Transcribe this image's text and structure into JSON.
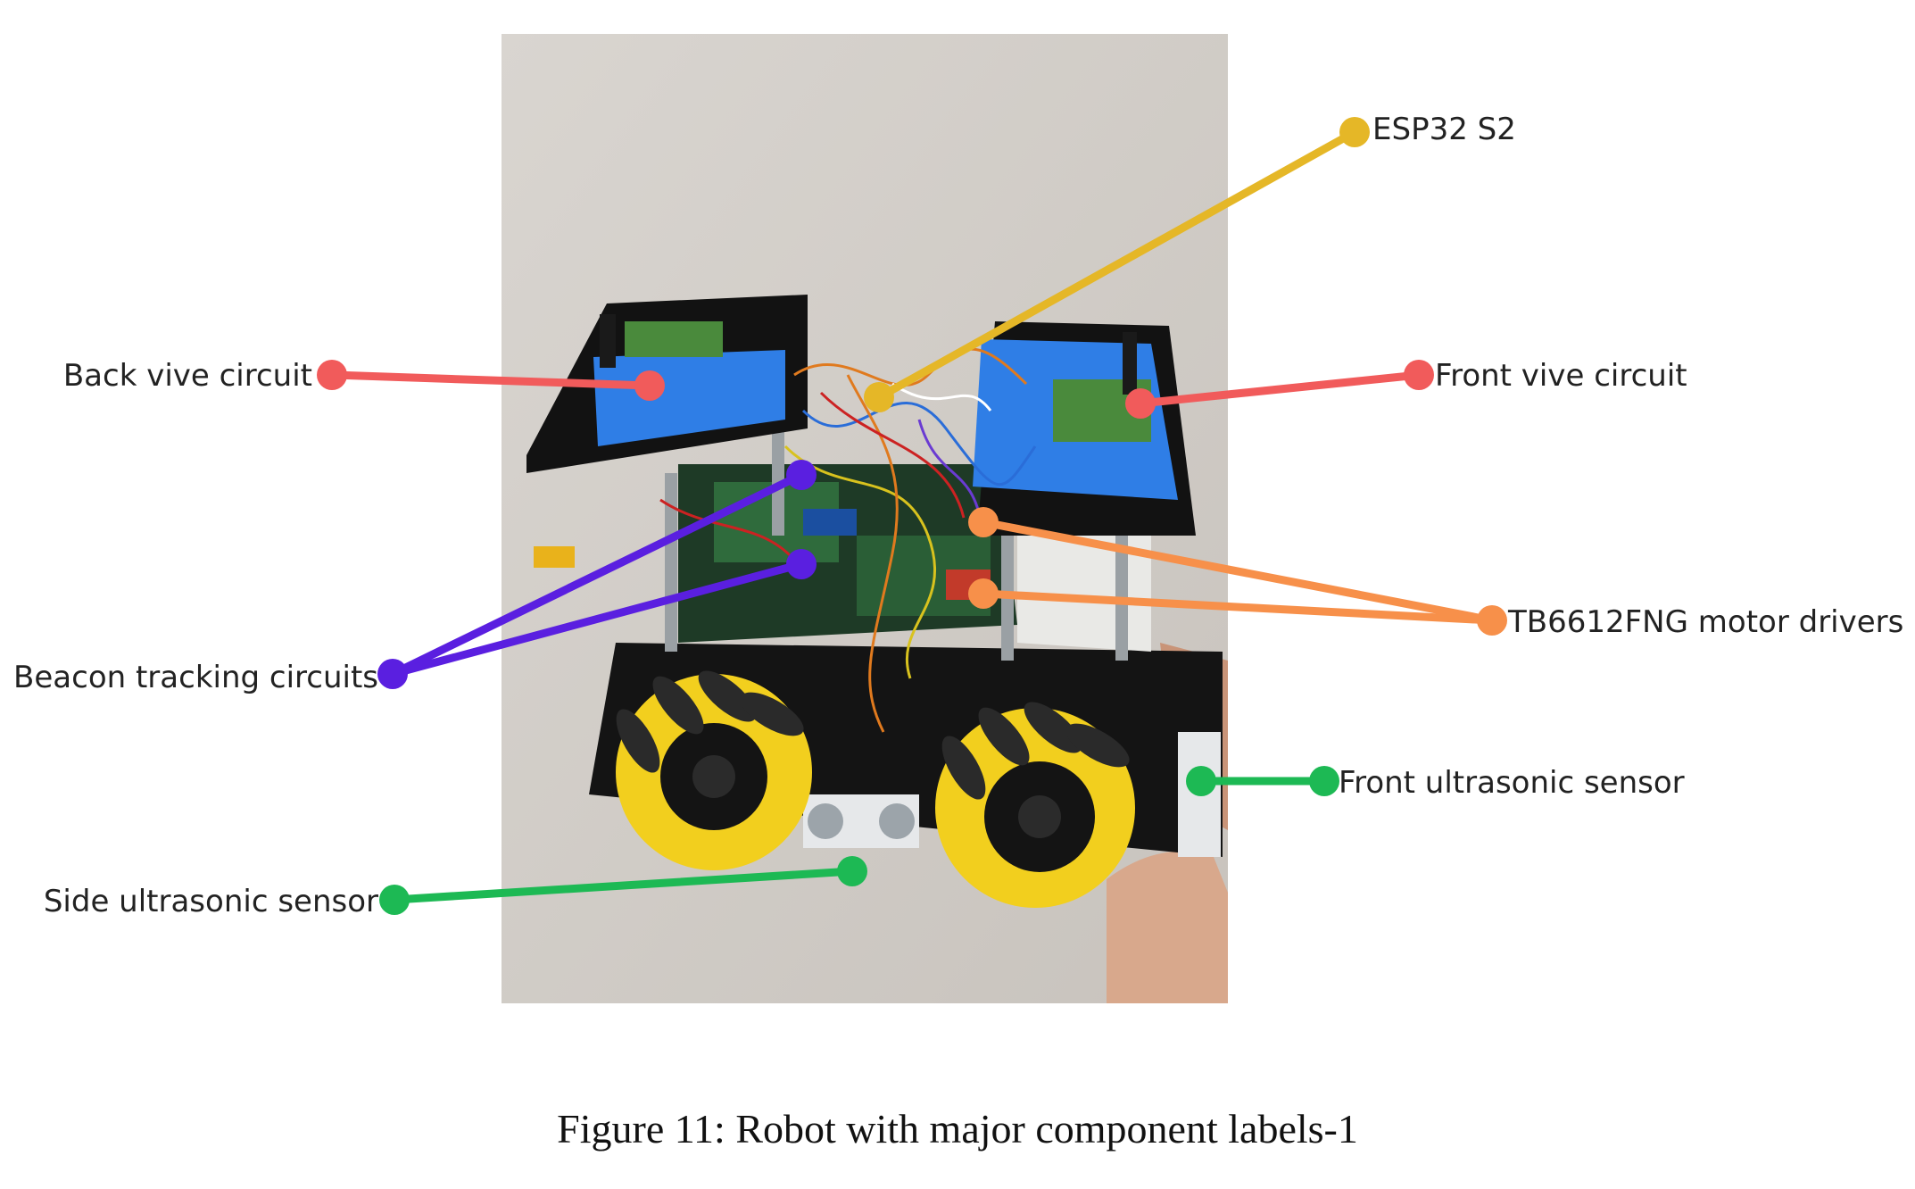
{
  "figure": {
    "caption": "Figure 11: Robot with major component labels-1",
    "photo_subject": "robot-photo",
    "labels": {
      "esp32": "ESP32 S2",
      "back_vive": "Back vive circuit",
      "front_vive": "Front vive circuit",
      "motor_drivers": "TB6612FNG motor drivers",
      "beacon_tracking": "Beacon tracking circuits",
      "front_ultrasonic": "Front ultrasonic sensor",
      "side_ultrasonic": "Side ultrasonic sensor"
    },
    "colors": {
      "esp32": "#E5B727",
      "vive": "#F15B5B",
      "motor_drivers": "#F7904A",
      "beacon_tracking": "#5A1FE0",
      "ultrasonic": "#1DB954"
    }
  }
}
